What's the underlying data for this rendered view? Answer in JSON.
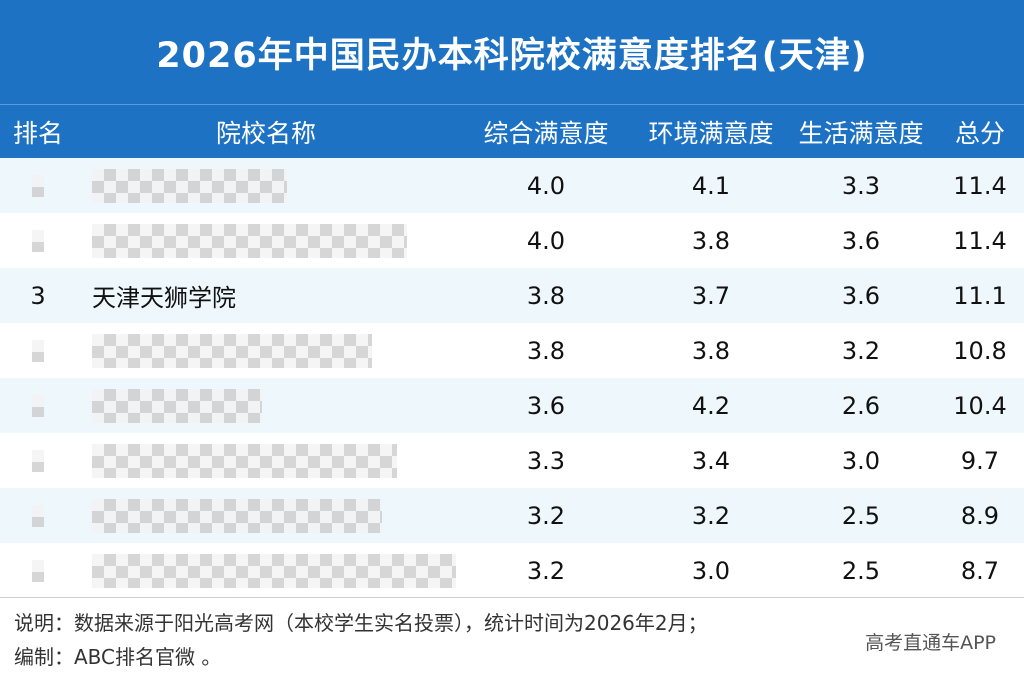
{
  "title": "2026年中国民办本科院校满意度排名(天津)",
  "columns": {
    "rank": "排名",
    "name": "院校名称",
    "overall": "综合满意度",
    "environment": "环境满意度",
    "life": "生活满意度",
    "total": "总分"
  },
  "rows": [
    {
      "rank": "",
      "name": "",
      "overall": "4.0",
      "environment": "4.1",
      "life": "3.3",
      "total": "11.4",
      "redacted": true
    },
    {
      "rank": "",
      "name": "",
      "overall": "4.0",
      "environment": "3.8",
      "life": "3.6",
      "total": "11.4",
      "redacted": true
    },
    {
      "rank": "3",
      "name": "天津天狮学院",
      "overall": "3.8",
      "environment": "3.7",
      "life": "3.6",
      "total": "11.1",
      "redacted": false
    },
    {
      "rank": "",
      "name": "",
      "overall": "3.8",
      "environment": "3.8",
      "life": "3.2",
      "total": "10.8",
      "redacted": true
    },
    {
      "rank": "",
      "name": "",
      "overall": "3.6",
      "environment": "4.2",
      "life": "2.6",
      "total": "10.4",
      "redacted": true
    },
    {
      "rank": "",
      "name": "",
      "overall": "3.3",
      "environment": "3.4",
      "life": "3.0",
      "total": "9.7",
      "redacted": true
    },
    {
      "rank": "",
      "name": "",
      "overall": "3.2",
      "environment": "3.2",
      "life": "2.5",
      "total": "8.9",
      "redacted": true
    },
    {
      "rank": "",
      "name": "",
      "overall": "3.2",
      "environment": "3.0",
      "life": "2.5",
      "total": "8.7",
      "redacted": true
    }
  ],
  "footer": {
    "note": "说明：数据来源于阳光高考网（本校学生实名投票），统计时间为2026年2月；",
    "editor": "编制：ABC排名官微 。"
  },
  "watermark": "高考直通车APP"
}
